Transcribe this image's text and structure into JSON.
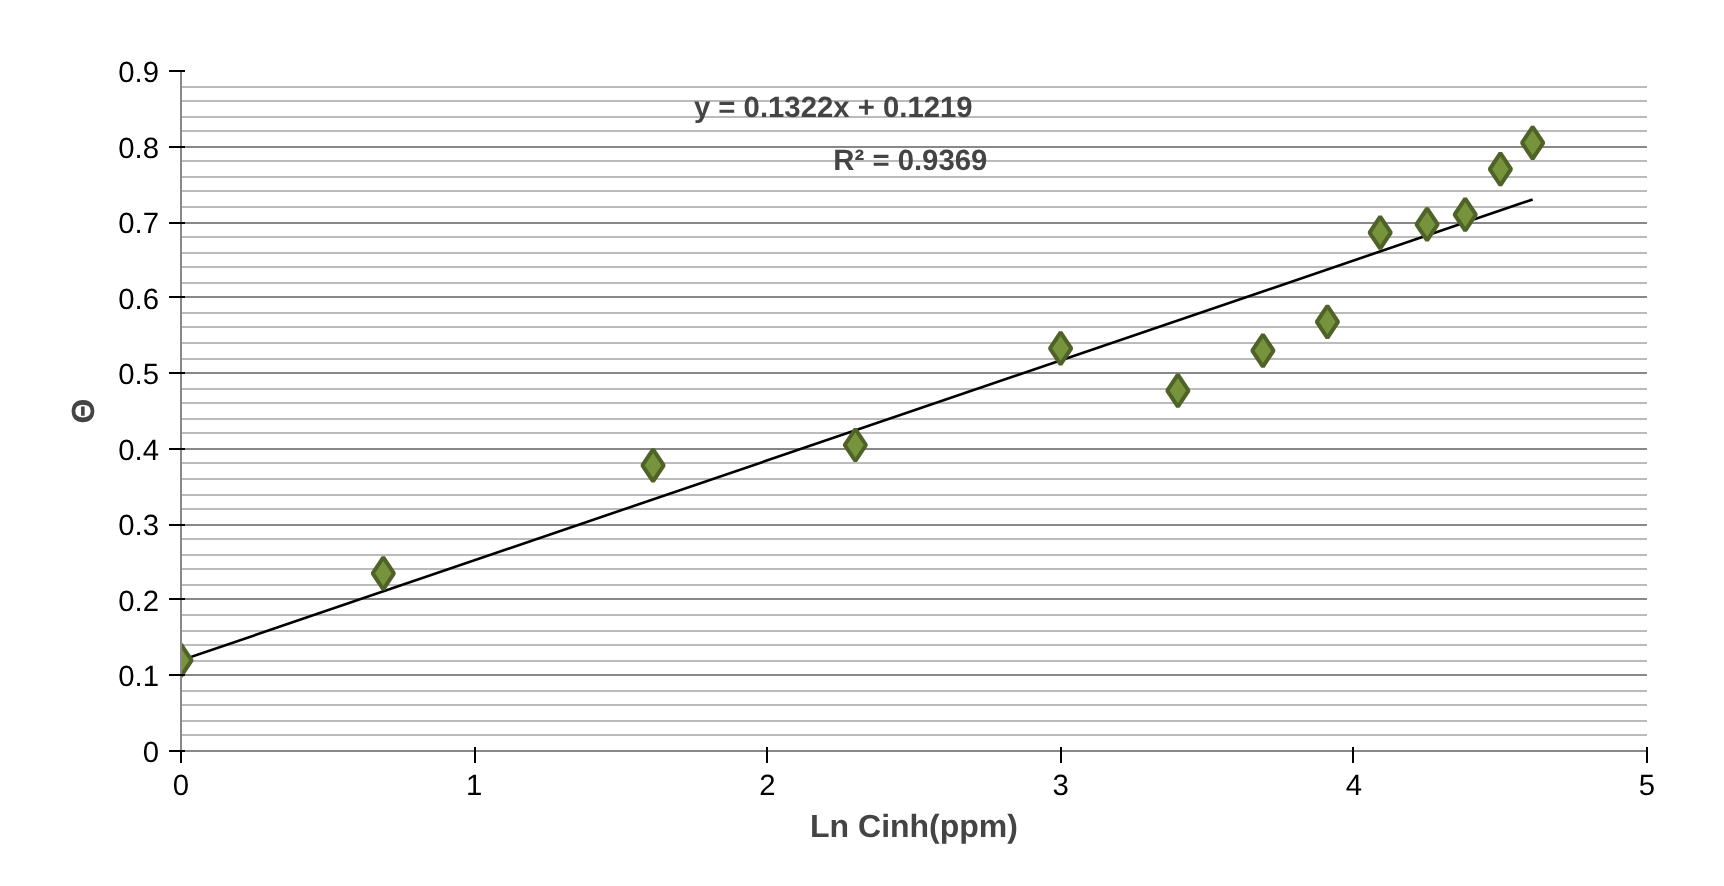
{
  "chart_data": {
    "type": "scatter",
    "xlabel": "Ln Cinh(ppm)",
    "ylabel": "Θ",
    "annotations": [
      "y = 0.1322x + 0.1219",
      "R² = 0.9369"
    ],
    "series": [
      {
        "color": "#77933c",
        "x": [
          0,
          0.69,
          1.61,
          2.3,
          3.0,
          3.4,
          3.69,
          3.91,
          4.09,
          4.25,
          4.38,
          4.5,
          4.61
        ],
        "values": [
          0.12,
          0.235,
          0.378,
          0.405,
          0.533,
          0.477,
          0.53,
          0.568,
          0.686,
          0.697,
          0.71,
          0.77,
          0.805
        ]
      },
      {
        "type": "line",
        "marker": "none",
        "color": "#000000",
        "x": [
          0,
          4.61
        ],
        "values": [
          0.12,
          0.73
        ]
      }
    ],
    "xlim": [
      0,
      5
    ],
    "xticks": [
      0,
      1,
      2,
      3,
      4,
      5
    ],
    "ylim": [
      0,
      0.9
    ],
    "yticks": [
      0,
      0.1,
      0.2,
      0.3,
      0.4,
      0.5,
      0.6,
      0.7,
      0.8,
      0.9
    ],
    "grid": "y",
    "marker": "diamond",
    "line_style": "solid"
  }
}
